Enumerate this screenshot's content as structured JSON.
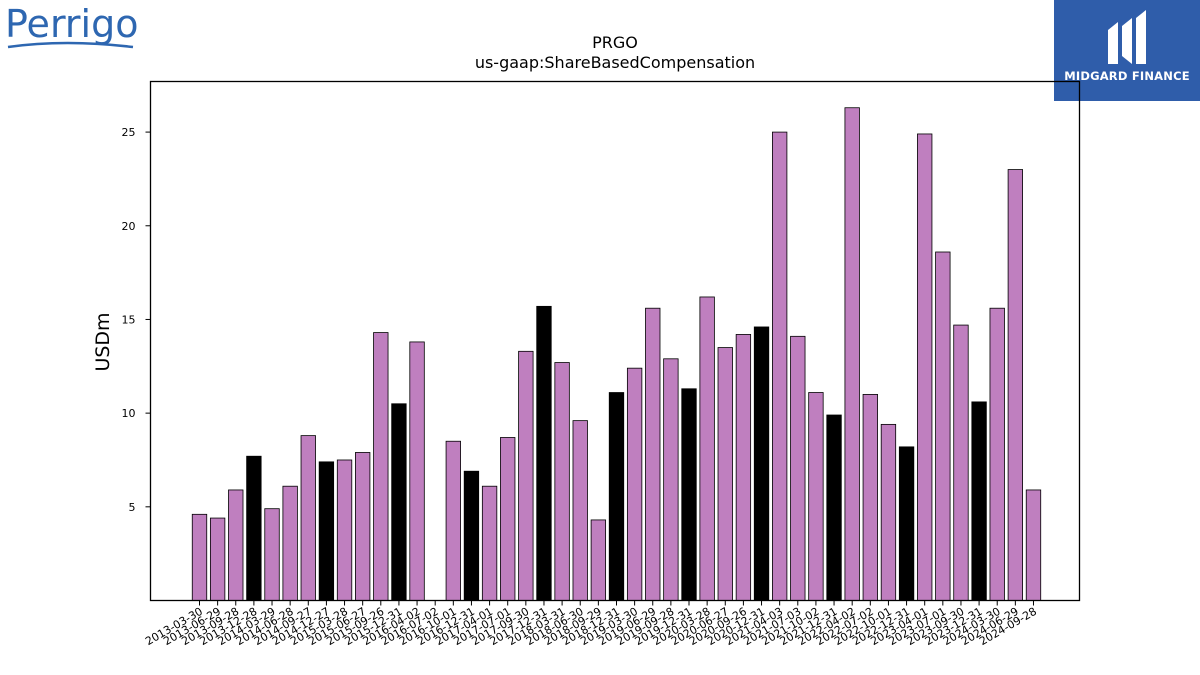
{
  "logos": {
    "left_brand": "Perrigo",
    "right_brand": "MIDGARD FINANCE"
  },
  "colors": {
    "bar_default": "#bf7fbf",
    "bar_highlight": "#000000",
    "bar_edge": "#000000",
    "logo_left_blue": "#2e67b1",
    "logo_right_bg": "#2f5daa"
  },
  "chart_data": {
    "type": "bar",
    "title": "PRGO",
    "subtitle": "us-gaap:ShareBasedCompensation",
    "xlabel": "",
    "ylabel": "USDm",
    "ylim": [
      0,
      27.7
    ],
    "yticks": [
      5,
      10,
      15,
      20,
      25
    ],
    "grid": false,
    "categories": [
      "2013-03-30",
      "2013-06-29",
      "2013-09-28",
      "2013-12-28",
      "2014-03-29",
      "2014-06-28",
      "2014-09-27",
      "2014-12-27",
      "2015-03-28",
      "2015-06-27",
      "2015-09-26",
      "2015-12-31",
      "2016-04-02",
      "2016-07-02",
      "2016-10-01",
      "2016-12-31",
      "2017-04-01",
      "2017-07-01",
      "2017-09-30",
      "2017-12-31",
      "2018-03-31",
      "2018-06-30",
      "2018-09-29",
      "2018-12-31",
      "2019-03-30",
      "2019-06-29",
      "2019-09-28",
      "2019-12-31",
      "2020-03-28",
      "2020-06-27",
      "2020-09-26",
      "2020-12-31",
      "2021-04-03",
      "2021-07-03",
      "2021-10-02",
      "2021-12-31",
      "2022-04-02",
      "2022-07-02",
      "2022-10-01",
      "2022-12-31",
      "2023-04-01",
      "2023-07-01",
      "2023-09-30",
      "2023-12-31",
      "2024-03-30",
      "2024-06-29",
      "2024-09-28"
    ],
    "values": [
      4.6,
      4.4,
      5.9,
      7.7,
      4.9,
      6.1,
      8.8,
      7.4,
      7.5,
      7.9,
      14.3,
      10.5,
      13.8,
      null,
      8.5,
      6.9,
      6.1,
      8.7,
      13.3,
      15.7,
      12.7,
      9.6,
      4.3,
      11.1,
      12.4,
      15.6,
      12.9,
      11.3,
      16.2,
      13.5,
      14.2,
      14.6,
      25.0,
      14.1,
      11.1,
      9.9,
      26.3,
      11.0,
      9.4,
      8.2,
      24.9,
      18.6,
      14.7,
      10.6,
      15.6,
      23.0,
      5.9
    ],
    "highlight": [
      false,
      false,
      false,
      true,
      false,
      false,
      false,
      true,
      false,
      false,
      false,
      true,
      false,
      false,
      false,
      true,
      false,
      false,
      false,
      true,
      false,
      false,
      false,
      true,
      false,
      false,
      false,
      true,
      false,
      false,
      false,
      true,
      false,
      false,
      false,
      true,
      false,
      false,
      false,
      true,
      false,
      false,
      false,
      true,
      false,
      false,
      false
    ]
  }
}
